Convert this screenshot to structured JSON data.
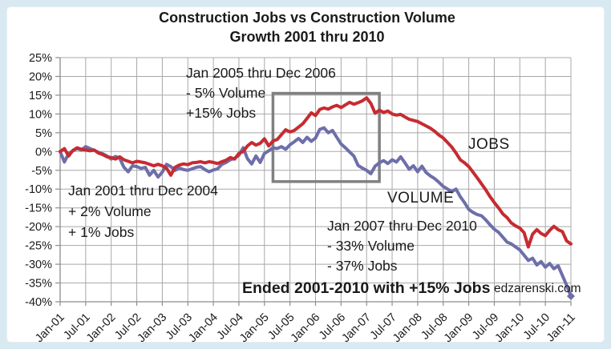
{
  "title": {
    "line1": "Construction Jobs vs Construction Volume",
    "line2": "Growth 2001 thru 2010"
  },
  "series_labels": {
    "jobs": "JOBS",
    "volume": "VOLUME"
  },
  "annotations": {
    "early": {
      "lines": [
        "Jan 2001 thru Dec 2004",
        "+ 2% Volume",
        "+ 1% Jobs"
      ]
    },
    "mid": {
      "lines": [
        "Jan 2005 thru Dec 2006",
        "- 5% Volume",
        "+15% Jobs"
      ]
    },
    "late": {
      "lines": [
        "Jan 2007 thru Dec 2010",
        "- 33% Volume",
        "- 37% Jobs"
      ]
    },
    "footer": "Ended 2001-2010 with +15% Jobs"
  },
  "watermark": "edzarenski.com",
  "colors": {
    "jobs_red": "#c62b31",
    "volume_purple": "#6e6eaa",
    "gridline_gray": "#a8a8a8",
    "axis_gray": "#8c8c8c",
    "highlight_box_gray": "#808080",
    "watermark_red": "#c53030",
    "frame_blue": "#d9e9f2"
  },
  "chart_data": {
    "type": "line",
    "title": "Construction Jobs vs Construction Volume Growth 2001 thru 2010",
    "xlabel": "",
    "ylabel": "",
    "unit": "percent growth since Jan 2001",
    "grid": true,
    "legend_position": "inline-labels",
    "ylim": [
      -40,
      25
    ],
    "y_step": 5,
    "y_tick_labels": [
      "25%",
      "20%",
      "15%",
      "10%",
      "5%",
      "0%",
      "-5%",
      "-10%",
      "-15%",
      "-20%",
      "-25%",
      "-30%",
      "-35%",
      "-40%"
    ],
    "x_start": "Jan-01",
    "x_end": "Jan-11",
    "months_total": 120,
    "months_per_gridline": 6,
    "x_tick_labels": [
      "Jan-01",
      "Jul-01",
      "Jan-02",
      "Jul-02",
      "Jan-03",
      "Jul-03",
      "Jan-04",
      "Jul-04",
      "Jan-05",
      "Jul-05",
      "Jan-06",
      "Jul-06",
      "Jan-07",
      "Jul-07",
      "Jan-08",
      "Jul-08",
      "Jan-09",
      "Jul-09",
      "Jan-10",
      "Jul-10",
      "Jan-11"
    ],
    "series": [
      {
        "name": "JOBS",
        "color": "#c62b31",
        "monthly_values": [
          0,
          0.8,
          -1.2,
          0.3,
          1,
          0.6,
          0.4,
          0.2,
          0.4,
          -0.4,
          -0.8,
          -1.4,
          -1.6,
          -2,
          -1.4,
          -2.2,
          -2.6,
          -3,
          -2.6,
          -2.8,
          -3,
          -3.4,
          -3.8,
          -3.4,
          -3.8,
          -4.4,
          -6.3,
          -4.2,
          -3.6,
          -3.3,
          -3.5,
          -3,
          -2.9,
          -2.7,
          -3,
          -2.7,
          -2.9,
          -3.2,
          -2.7,
          -2.3,
          -1.6,
          -2,
          -0.5,
          0,
          1.5,
          2.4,
          1.7,
          2.2,
          3.4,
          1.5,
          2.8,
          3.2,
          4.5,
          5.8,
          5.2,
          5.6,
          6.5,
          7.4,
          8.8,
          10.3,
          9.6,
          11.2,
          11.6,
          11.3,
          11.9,
          12.3,
          11.7,
          12.4,
          13.1,
          12.6,
          13,
          13.5,
          14.3,
          12.8,
          10.2,
          11,
          10.4,
          10.8,
          10,
          9.7,
          9.9,
          9.2,
          8.6,
          8.3,
          8,
          7.4,
          6.8,
          6.2,
          5.4,
          4.4,
          3.6,
          2.4,
          1.2,
          -0.4,
          -2.2,
          -3,
          -4,
          -5.5,
          -7,
          -8.6,
          -10.2,
          -12,
          -13.6,
          -15,
          -16.6,
          -17.6,
          -19,
          -19.8,
          -20.4,
          -21.6,
          -25.4,
          -22,
          -20.8,
          -21.8,
          -22.4,
          -21,
          -19.9,
          -20.8,
          -21.3,
          -23.8,
          -24.6
        ]
      },
      {
        "name": "VOLUME",
        "color": "#6e6eaa",
        "end_marker": true,
        "monthly_values": [
          0,
          -2.8,
          -0.5,
          0.2,
          0.8,
          0.4,
          1.3,
          0.8,
          0.3,
          -0.2,
          -0.6,
          -1.2,
          -2,
          -1.3,
          -1.8,
          -4.2,
          -5.4,
          -3.8,
          -4,
          -4.5,
          -4.2,
          -6.3,
          -5,
          -6.8,
          -5.5,
          -3.4,
          -4,
          -5,
          -4.4,
          -4.8,
          -5,
          -4.6,
          -4.2,
          -4,
          -4.8,
          -5.4,
          -4.9,
          -4.6,
          -3.4,
          -2.9,
          -2.2,
          -1.8,
          -1,
          1,
          -1.9,
          -3.3,
          -1.2,
          -2.9,
          -0.5,
          0.2,
          1,
          0.8,
          1.3,
          0.6,
          1.8,
          2.6,
          3.5,
          2.4,
          3.8,
          2.7,
          3.6,
          5.9,
          6.3,
          5,
          5.6,
          3.8,
          2,
          1,
          -0.1,
          -1.2,
          -3.7,
          -4.4,
          -5,
          -5.9,
          -3.9,
          -3,
          -2.4,
          -3.2,
          -2.2,
          -2.8,
          -1.4,
          -3,
          -4.7,
          -3.8,
          -5.4,
          -3.9,
          -5.6,
          -6.5,
          -7.2,
          -8.2,
          -9.3,
          -10,
          -10.7,
          -10,
          -12,
          -13.6,
          -15.4,
          -16.2,
          -16.8,
          -17.1,
          -18.2,
          -19.5,
          -20.7,
          -21.5,
          -22.8,
          -24.1,
          -24.6,
          -25.4,
          -26.2,
          -27.6,
          -29,
          -28.4,
          -30.2,
          -29.3,
          -30.8,
          -29.8,
          -31.2,
          -30.4,
          -33,
          -35.6,
          -38.5
        ]
      }
    ],
    "highlight_box": {
      "label": "Jan 2005 thru Dec 2006 region",
      "from_month_index": 50,
      "to_month_index": 75,
      "top_pct": 15.5,
      "bottom_pct": -8,
      "color": "#808080"
    }
  }
}
